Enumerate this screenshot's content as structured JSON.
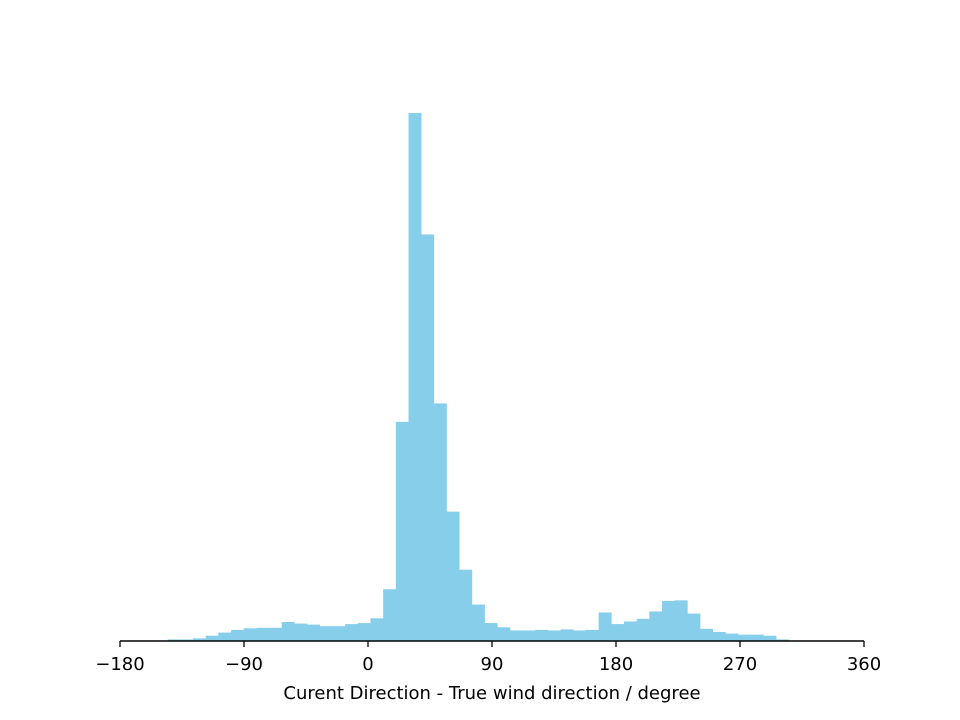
{
  "chart_data": {
    "type": "bar",
    "subtype": "histogram",
    "xlabel": "Curent Direction - True wind direction / degree",
    "ylabel": "",
    "xlim": [
      -180,
      360
    ],
    "x_ticks": [
      -180,
      -90,
      0,
      90,
      180,
      270,
      360
    ],
    "x_tick_labels": [
      "−180",
      "−90",
      "0",
      "90",
      "180",
      "270",
      "360"
    ],
    "y_axis_visible": false,
    "grid": false,
    "bar_color": "#87ceeb",
    "bin_width": 9.2,
    "bin_start": -145.4,
    "values": [
      0.3,
      0.3,
      0.5,
      1.0,
      1.6,
      2.1,
      2.4,
      2.5,
      2.5,
      3.6,
      3.3,
      3.1,
      2.8,
      2.8,
      3.2,
      3.4,
      4.3,
      9.8,
      41.5,
      100,
      77,
      45,
      24.5,
      13.5,
      6.9,
      3.4,
      2.6,
      2.0,
      2.0,
      2.1,
      2.0,
      2.2,
      2.0,
      2.1,
      5.4,
      3.2,
      3.7,
      4.2,
      5.6,
      7.6,
      7.7,
      5.2,
      2.3,
      1.7,
      1.4,
      1.2,
      1.2,
      1.0,
      0.3
    ]
  }
}
